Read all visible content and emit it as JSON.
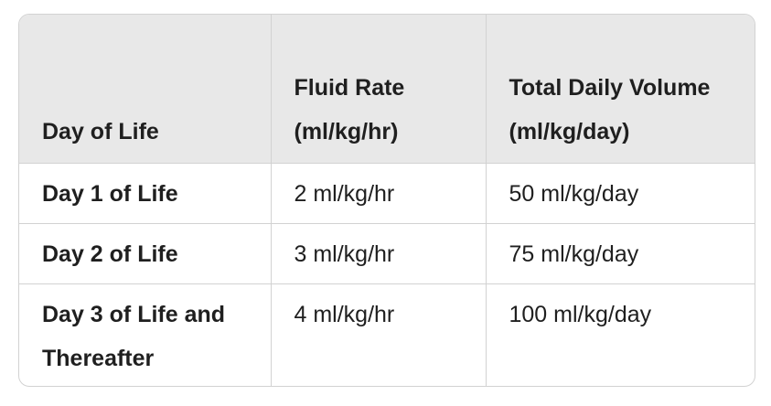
{
  "table": {
    "headers": [
      "Day of Life",
      "Fluid Rate (ml/kg/hr)",
      "Total Daily Volume (ml/kg/day)"
    ],
    "rows": [
      [
        "Day 1 of Life",
        "2 ml/kg/hr",
        "50 ml/kg/day"
      ],
      [
        "Day 2 of Life",
        "3 ml/kg/hr",
        "75 ml/kg/day"
      ],
      [
        "Day 3 of Life and Thereafter",
        "4 ml/kg/hr",
        "100 ml/kg/day"
      ]
    ]
  }
}
